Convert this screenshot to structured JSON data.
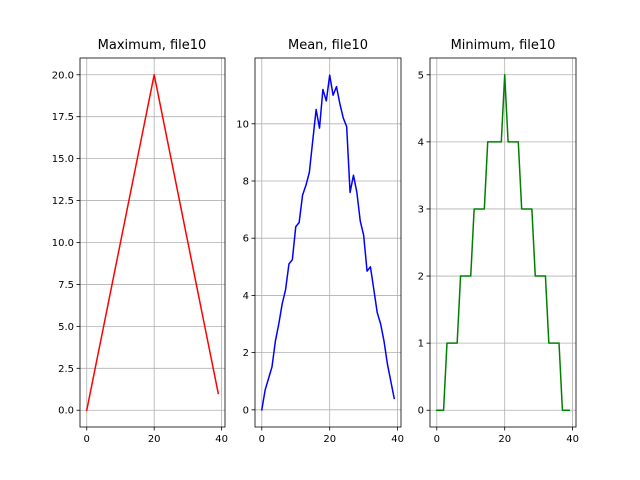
{
  "chart_data": [
    {
      "type": "line",
      "title": "Maximum, file10",
      "xlabel": "",
      "ylabel": "",
      "xlim": [
        -2,
        41
      ],
      "ylim": [
        -1,
        21
      ],
      "xticks": [
        0,
        20,
        40
      ],
      "yticks": [
        0.0,
        2.5,
        5.0,
        7.5,
        10.0,
        12.5,
        15.0,
        17.5,
        20.0
      ],
      "ytick_labels": [
        "0.0",
        "2.5",
        "5.0",
        "7.5",
        "10.0",
        "12.5",
        "15.0",
        "17.5",
        "20.0"
      ],
      "xtick_labels": [
        "0",
        "20",
        "40"
      ],
      "grid": true,
      "series": [
        {
          "color": "#ff0000",
          "x": [
            0,
            1,
            2,
            3,
            4,
            5,
            6,
            7,
            8,
            9,
            10,
            11,
            12,
            13,
            14,
            15,
            16,
            17,
            18,
            19,
            20,
            21,
            22,
            23,
            24,
            25,
            26,
            27,
            28,
            29,
            30,
            31,
            32,
            33,
            34,
            35,
            36,
            37,
            38,
            39
          ],
          "values": [
            0,
            1,
            2,
            3,
            4,
            5,
            6,
            7,
            8,
            9,
            10,
            11,
            12,
            13,
            14,
            15,
            16,
            17,
            18,
            19,
            20,
            19,
            18,
            17,
            16,
            15,
            14,
            13,
            12,
            11,
            10,
            9,
            8,
            7,
            6,
            5,
            4,
            3,
            2,
            1
          ]
        }
      ]
    },
    {
      "type": "line",
      "title": "Mean, file10",
      "xlabel": "",
      "ylabel": "",
      "xlim": [
        -2,
        41
      ],
      "ylim": [
        -0.6,
        12.3
      ],
      "xticks": [
        0,
        20,
        40
      ],
      "yticks": [
        0,
        2,
        4,
        6,
        8,
        10
      ],
      "ytick_labels": [
        "0",
        "2",
        "4",
        "6",
        "8",
        "10"
      ],
      "xtick_labels": [
        "0",
        "20",
        "40"
      ],
      "grid": true,
      "series": [
        {
          "color": "#0000ff",
          "x": [
            0,
            1,
            2,
            3,
            4,
            5,
            6,
            7,
            8,
            9,
            10,
            11,
            12,
            13,
            14,
            15,
            16,
            17,
            18,
            19,
            20,
            21,
            22,
            23,
            24,
            25,
            26,
            27,
            28,
            29,
            30,
            31,
            32,
            33,
            34,
            35,
            36,
            37,
            38,
            39
          ],
          "values": [
            0,
            0.7,
            1.1,
            1.5,
            2.4,
            3.0,
            3.7,
            4.2,
            5.1,
            5.25,
            6.4,
            6.55,
            7.5,
            7.85,
            8.3,
            9.4,
            10.5,
            9.85,
            11.2,
            10.8,
            11.7,
            11.0,
            11.3,
            10.7,
            10.2,
            9.9,
            7.6,
            8.2,
            7.6,
            6.6,
            6.1,
            4.85,
            5.0,
            4.2,
            3.4,
            3.0,
            2.4,
            1.6,
            1.0,
            0.4
          ]
        }
      ]
    },
    {
      "type": "line",
      "title": "Minimum, file10",
      "xlabel": "",
      "ylabel": "",
      "xlim": [
        -2,
        41
      ],
      "ylim": [
        -0.25,
        5.25
      ],
      "xticks": [
        0,
        20,
        40
      ],
      "yticks": [
        0,
        1,
        2,
        3,
        4,
        5
      ],
      "ytick_labels": [
        "0",
        "1",
        "2",
        "3",
        "4",
        "5"
      ],
      "xtick_labels": [
        "0",
        "20",
        "40"
      ],
      "grid": true,
      "series": [
        {
          "color": "#008000",
          "x": [
            0,
            1,
            2,
            3,
            4,
            5,
            6,
            7,
            8,
            9,
            10,
            11,
            12,
            13,
            14,
            15,
            16,
            17,
            18,
            19,
            20,
            21,
            22,
            23,
            24,
            25,
            26,
            27,
            28,
            29,
            30,
            31,
            32,
            33,
            34,
            35,
            36,
            37,
            38,
            39
          ],
          "values": [
            0,
            0,
            0,
            1,
            1,
            1,
            1,
            2,
            2,
            2,
            2,
            3,
            3,
            3,
            3,
            4,
            4,
            4,
            4,
            4,
            5,
            4,
            4,
            4,
            4,
            3,
            3,
            3,
            3,
            2,
            2,
            2,
            2,
            1,
            1,
            1,
            1,
            0,
            0,
            0
          ]
        }
      ]
    }
  ]
}
